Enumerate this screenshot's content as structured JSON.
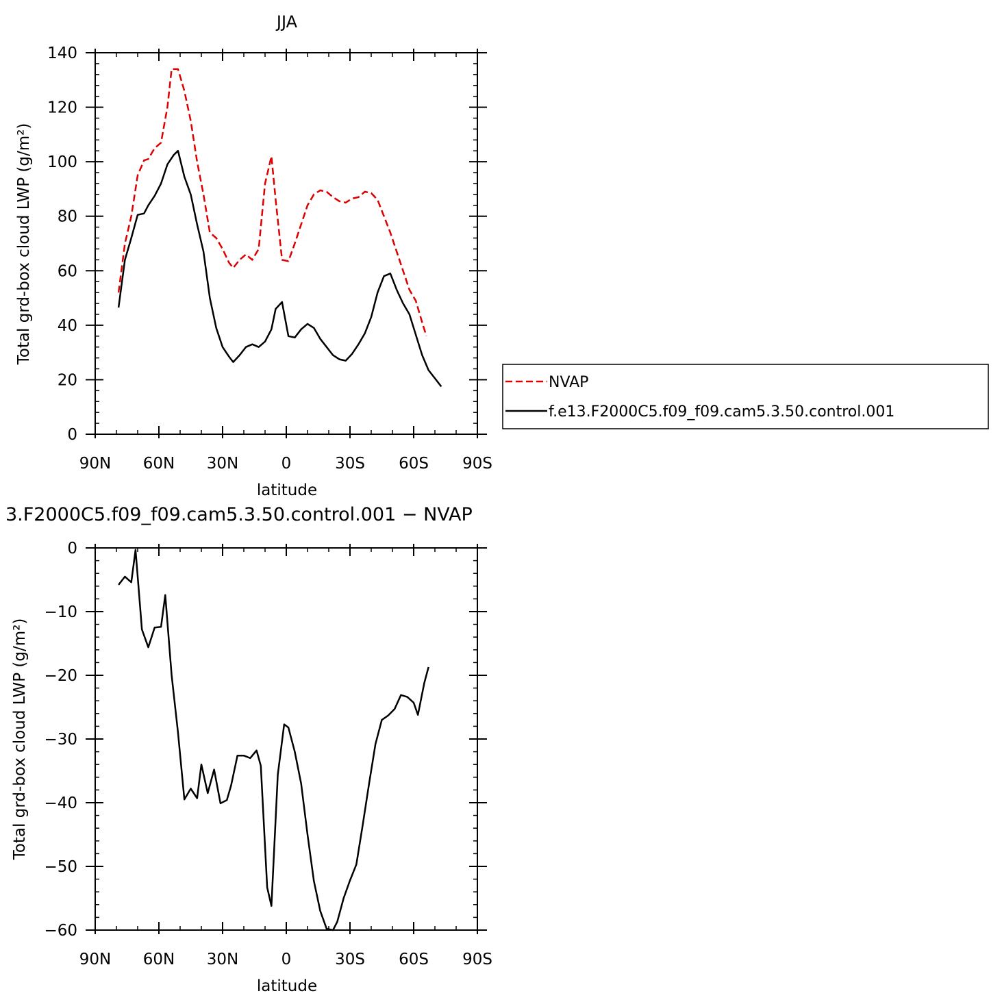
{
  "chart_data": [
    {
      "type": "line",
      "title": "JJA",
      "xlabel": "latitude",
      "ylabel": "Total grd-box cloud LWP (g/m²)",
      "xlim": [
        90,
        -90
      ],
      "ylim": [
        0,
        140
      ],
      "xticks": [
        90,
        60,
        30,
        0,
        -30,
        -60,
        -90
      ],
      "xtick_labels": [
        "90N",
        "60N",
        "30N",
        "0",
        "30S",
        "60S",
        "90S"
      ],
      "yticks": [
        0,
        20,
        40,
        60,
        80,
        100,
        120,
        140
      ],
      "ytick_labels": [
        "0",
        "20",
        "40",
        "60",
        "80",
        "100",
        "120",
        "140"
      ],
      "legend": "right",
      "series": [
        {
          "name": "NVAP",
          "color": "#dd0000",
          "dash": true,
          "points": [
            [
              79,
              52
            ],
            [
              76,
              70
            ],
            [
              73,
              80
            ],
            [
              70,
              95
            ],
            [
              67,
              100.5
            ],
            [
              65,
              101
            ],
            [
              62,
              105
            ],
            [
              59,
              107
            ],
            [
              56,
              120
            ],
            [
              54,
              134
            ],
            [
              51,
              134
            ],
            [
              48,
              126
            ],
            [
              45,
              115
            ],
            [
              42,
              100
            ],
            [
              39,
              88
            ],
            [
              36,
              74
            ],
            [
              33,
              72
            ],
            [
              30,
              68
            ],
            [
              27,
              63
            ],
            [
              25,
              61
            ],
            [
              22,
              64
            ],
            [
              19,
              66
            ],
            [
              16,
              64
            ],
            [
              13,
              68
            ],
            [
              10,
              92
            ],
            [
              7,
              102
            ],
            [
              5,
              86
            ],
            [
              2,
              64
            ],
            [
              -1,
              63.5
            ],
            [
              -4,
              70
            ],
            [
              -7,
              77
            ],
            [
              -10,
              84
            ],
            [
              -13,
              88
            ],
            [
              -16,
              89.5
            ],
            [
              -19,
              89
            ],
            [
              -22,
              87
            ],
            [
              -25,
              85.5
            ],
            [
              -28,
              85
            ],
            [
              -31,
              86.5
            ],
            [
              -34,
              87
            ],
            [
              -37,
              89
            ],
            [
              -40,
              88.5
            ],
            [
              -43,
              86
            ],
            [
              -46,
              80
            ],
            [
              -49,
              74
            ],
            [
              -52,
              67
            ],
            [
              -55,
              60
            ],
            [
              -58,
              53
            ],
            [
              -61,
              49
            ],
            [
              -64,
              41
            ],
            [
              -66,
              36
            ]
          ]
        },
        {
          "name": "f.e13.F2000C5.f09_f09.cam5.3.50.control.001",
          "color": "#000000",
          "dash": false,
          "points": [
            [
              79,
              46.5
            ],
            [
              76,
              64
            ],
            [
              73,
              72
            ],
            [
              70,
              80.5
            ],
            [
              67,
              81
            ],
            [
              65,
              84
            ],
            [
              62,
              87.5
            ],
            [
              59,
              92
            ],
            [
              56,
              99
            ],
            [
              53,
              102.5
            ],
            [
              51,
              104
            ],
            [
              48,
              94.5
            ],
            [
              45,
              88
            ],
            [
              42,
              77
            ],
            [
              39,
              67
            ],
            [
              36,
              50
            ],
            [
              33,
              39
            ],
            [
              30,
              32
            ],
            [
              27,
              28.5
            ],
            [
              25,
              26.5
            ],
            [
              22,
              29
            ],
            [
              19,
              32
            ],
            [
              16,
              33
            ],
            [
              13,
              32
            ],
            [
              10,
              34
            ],
            [
              7,
              38.5
            ],
            [
              5,
              46
            ],
            [
              2,
              48.5
            ],
            [
              -1,
              36
            ],
            [
              -4,
              35.5
            ],
            [
              -7,
              38.5
            ],
            [
              -10,
              40.5
            ],
            [
              -13,
              39
            ],
            [
              -16,
              35
            ],
            [
              -19,
              32
            ],
            [
              -22,
              29
            ],
            [
              -25,
              27.5
            ],
            [
              -28,
              27
            ],
            [
              -31,
              29.5
            ],
            [
              -34,
              33
            ],
            [
              -37,
              37
            ],
            [
              -40,
              43
            ],
            [
              -43,
              52
            ],
            [
              -46,
              58
            ],
            [
              -49,
              59
            ],
            [
              -52,
              53
            ],
            [
              -55,
              48
            ],
            [
              -58,
              44
            ],
            [
              -61,
              36.5
            ],
            [
              -64,
              29
            ],
            [
              -67,
              23.5
            ],
            [
              -70,
              20.5
            ],
            [
              -73,
              17.5
            ]
          ]
        }
      ]
    },
    {
      "type": "line",
      "title": "3.F2000C5.f09_f09.cam5.3.50.control.001  − NVAP",
      "xlabel": "latitude",
      "ylabel": "Total grd-box cloud LWP (g/m²)",
      "xlim": [
        90,
        -90
      ],
      "ylim": [
        -60,
        0
      ],
      "xticks": [
        90,
        60,
        30,
        0,
        -30,
        -60,
        -90
      ],
      "xtick_labels": [
        "90N",
        "60N",
        "30N",
        "0",
        "30S",
        "60S",
        "90S"
      ],
      "yticks": [
        0,
        -10,
        -20,
        -30,
        -40,
        -50,
        -60
      ],
      "ytick_labels": [
        "0",
        "−10",
        "−20",
        "−30",
        "−40",
        "−50",
        "−60"
      ],
      "series": [
        {
          "color": "#000000",
          "points": [
            [
              79,
              -5.8
            ],
            [
              76,
              -4.5
            ],
            [
              73,
              -5.4
            ],
            [
              71,
              -0.3
            ],
            [
              68,
              -12.8
            ],
            [
              65,
              -15.6
            ],
            [
              62,
              -12.5
            ],
            [
              59,
              -12.4
            ],
            [
              57,
              -7.4
            ],
            [
              54,
              -20
            ],
            [
              51,
              -29
            ],
            [
              48,
              -39.5
            ],
            [
              45,
              -37.8
            ],
            [
              42,
              -39.3
            ],
            [
              40,
              -34
            ],
            [
              37,
              -38.5
            ],
            [
              34,
              -34.8
            ],
            [
              31,
              -40.1
            ],
            [
              28,
              -39.6
            ],
            [
              26,
              -37.3
            ],
            [
              23,
              -32.6
            ],
            [
              20,
              -32.6
            ],
            [
              17,
              -33
            ],
            [
              14,
              -31.8
            ],
            [
              12,
              -34.2
            ],
            [
              9,
              -53.3
            ],
            [
              7,
              -56.2
            ],
            [
              4,
              -35.6
            ],
            [
              1,
              -27.7
            ],
            [
              -1,
              -28.2
            ],
            [
              -4,
              -32
            ],
            [
              -7,
              -37
            ],
            [
              -10,
              -45
            ],
            [
              -13,
              -52.3
            ],
            [
              -16,
              -57
            ],
            [
              -19,
              -59.8
            ],
            [
              -22,
              -60
            ],
            [
              -24,
              -58.7
            ],
            [
              -27,
              -55
            ],
            [
              -30,
              -52.2
            ],
            [
              -33,
              -49.7
            ],
            [
              -36,
              -43.5
            ],
            [
              -39,
              -37
            ],
            [
              -42,
              -30.8
            ],
            [
              -45,
              -27
            ],
            [
              -48,
              -26.3
            ],
            [
              -51,
              -25.3
            ],
            [
              -54,
              -23.1
            ],
            [
              -57,
              -23.4
            ],
            [
              -60,
              -24.3
            ],
            [
              -62,
              -26.2
            ],
            [
              -65,
              -21.2
            ],
            [
              -67,
              -18.7
            ]
          ]
        }
      ]
    }
  ]
}
